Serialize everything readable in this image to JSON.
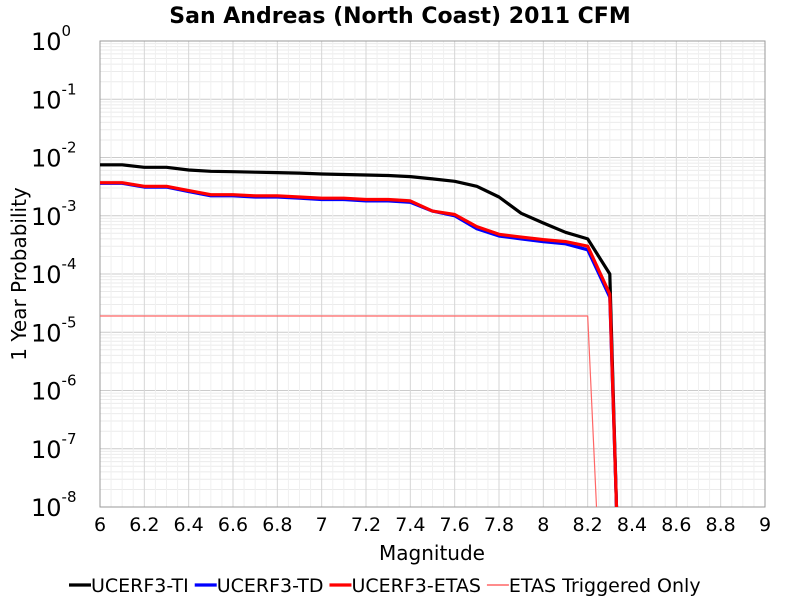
{
  "chart_data": {
    "type": "line",
    "title": "San Andreas (North Coast) 2011 CFM",
    "xlabel": "Magnitude",
    "ylabel": "1 Year Probability",
    "xlim": [
      6,
      9
    ],
    "ylim": [
      1e-08,
      1
    ],
    "yscale": "log",
    "grid": true,
    "legend_position": "bottom",
    "x_ticks": [
      "6",
      "6.2",
      "6.4",
      "6.6",
      "6.8",
      "7",
      "7.2",
      "7.4",
      "7.6",
      "7.8",
      "8",
      "8.2",
      "8.4",
      "8.6",
      "8.8",
      "9"
    ],
    "y_ticks": [
      {
        "base": "10",
        "exp": "0",
        "value": 1
      },
      {
        "base": "10",
        "exp": "-1",
        "value": 0.1
      },
      {
        "base": "10",
        "exp": "-2",
        "value": 0.01
      },
      {
        "base": "10",
        "exp": "-3",
        "value": 0.001
      },
      {
        "base": "10",
        "exp": "-4",
        "value": 0.0001
      },
      {
        "base": "10",
        "exp": "-5",
        "value": 1e-05
      },
      {
        "base": "10",
        "exp": "-6",
        "value": 1e-06
      },
      {
        "base": "10",
        "exp": "-7",
        "value": 1e-07
      },
      {
        "base": "10",
        "exp": "-8",
        "value": 1e-08
      }
    ],
    "series": [
      {
        "name": "UCERF3-TI",
        "color": "#000000",
        "x": [
          6.0,
          6.1,
          6.2,
          6.3,
          6.4,
          6.5,
          6.6,
          6.7,
          6.8,
          6.9,
          7.0,
          7.1,
          7.2,
          7.3,
          7.4,
          7.5,
          7.6,
          7.7,
          7.8,
          7.9,
          8.0,
          8.1,
          8.2,
          8.3,
          8.33
        ],
        "y": [
          0.0075,
          0.0075,
          0.0068,
          0.0068,
          0.0061,
          0.0058,
          0.0057,
          0.0056,
          0.0055,
          0.0054,
          0.0052,
          0.0051,
          0.005,
          0.0049,
          0.0047,
          0.0043,
          0.0039,
          0.0032,
          0.0021,
          0.0011,
          0.00075,
          0.00052,
          0.0004,
          0.0001,
          1e-08
        ]
      },
      {
        "name": "UCERF3-TD",
        "color": "#0000ff",
        "x": [
          6.0,
          6.1,
          6.2,
          6.3,
          6.4,
          6.5,
          6.6,
          6.7,
          6.8,
          6.9,
          7.0,
          7.1,
          7.2,
          7.3,
          7.4,
          7.5,
          7.6,
          7.7,
          7.8,
          7.9,
          8.0,
          8.1,
          8.2,
          8.3,
          8.33
        ],
        "y": [
          0.0036,
          0.0036,
          0.0031,
          0.0031,
          0.0026,
          0.0022,
          0.0022,
          0.0021,
          0.0021,
          0.002,
          0.0019,
          0.0019,
          0.0018,
          0.0018,
          0.0017,
          0.0012,
          0.001,
          0.0006,
          0.00045,
          0.0004,
          0.00036,
          0.00033,
          0.00026,
          4e-05,
          1e-08
        ]
      },
      {
        "name": "UCERF3-ETAS",
        "color": "#ff0000",
        "x": [
          6.0,
          6.1,
          6.2,
          6.3,
          6.4,
          6.5,
          6.6,
          6.7,
          6.8,
          6.9,
          7.0,
          7.1,
          7.2,
          7.3,
          7.4,
          7.5,
          7.6,
          7.7,
          7.8,
          7.9,
          8.0,
          8.1,
          8.2,
          8.3,
          8.33
        ],
        "y": [
          0.0037,
          0.0037,
          0.0032,
          0.0032,
          0.0027,
          0.0023,
          0.0023,
          0.0022,
          0.0022,
          0.0021,
          0.002,
          0.002,
          0.0019,
          0.0019,
          0.0018,
          0.0012,
          0.00105,
          0.00065,
          0.00048,
          0.00043,
          0.00039,
          0.00036,
          0.0003,
          4.5e-05,
          1e-08
        ]
      },
      {
        "name": "ETAS Triggered Only",
        "color": "#ff6666",
        "thin": true,
        "x": [
          6.0,
          8.2,
          8.24
        ],
        "y": [
          1.9e-05,
          1.9e-05,
          1e-08
        ]
      }
    ]
  }
}
